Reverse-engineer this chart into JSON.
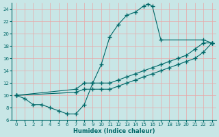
{
  "xlabel": "Humidex (Indice chaleur)",
  "background_color": "#c8e6e6",
  "grid_color": "#e8a8a8",
  "line_color": "#006868",
  "xlim": [
    -0.5,
    23.5
  ],
  "ylim": [
    6,
    25
  ],
  "xticks": [
    0,
    1,
    2,
    3,
    4,
    5,
    6,
    7,
    8,
    9,
    10,
    11,
    12,
    13,
    14,
    15,
    16,
    17,
    18,
    19,
    20,
    21,
    22,
    23
  ],
  "yticks": [
    6,
    8,
    10,
    12,
    14,
    16,
    18,
    20,
    22,
    24
  ],
  "curve1_x": [
    0,
    1,
    2,
    3,
    4,
    5,
    6,
    7,
    8,
    9,
    10,
    11,
    12,
    13,
    14,
    15,
    15.5,
    16,
    17,
    22,
    23
  ],
  "curve1_y": [
    10,
    9.5,
    8.5,
    8.5,
    8,
    7.5,
    7,
    7,
    8.5,
    12,
    15,
    19.5,
    21.5,
    23,
    23.5,
    24.5,
    24.8,
    24.5,
    19,
    19,
    18.5
  ],
  "curve2_x": [
    0,
    7,
    8,
    9,
    10,
    11,
    12,
    13,
    14,
    15,
    16,
    17,
    18,
    19,
    20,
    21,
    22,
    23
  ],
  "curve2_y": [
    10,
    11,
    12,
    12,
    12,
    12,
    12.5,
    13,
    13.5,
    14,
    14.5,
    15,
    15.5,
    16,
    16.5,
    17.5,
    18.5,
    18.5
  ],
  "curve3_x": [
    0,
    7,
    8,
    9,
    10,
    11,
    12,
    13,
    14,
    15,
    16,
    17,
    18,
    19,
    20,
    21,
    22,
    23
  ],
  "curve3_y": [
    10,
    10.5,
    11,
    11,
    11,
    11,
    11.5,
    12,
    12.5,
    13,
    13.5,
    14,
    14.5,
    15,
    15.5,
    16,
    17,
    18.5
  ]
}
